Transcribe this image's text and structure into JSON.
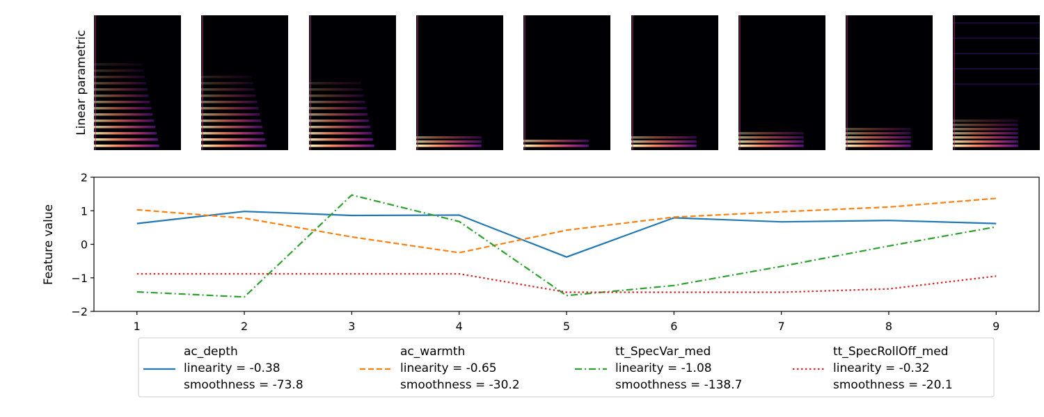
{
  "spectrogram_strip": {
    "ylabel": "Linear parametric",
    "panel_count": 9
  },
  "chart_data": {
    "type": "line",
    "title": "",
    "xlabel": "",
    "ylabel": "Feature value",
    "x": [
      1,
      2,
      3,
      4,
      5,
      6,
      7,
      8,
      9
    ],
    "xticks": [
      "1",
      "2",
      "3",
      "4",
      "5",
      "6",
      "7",
      "8",
      "9"
    ],
    "yticks": [
      "2",
      "1",
      "0",
      "−1",
      "−2"
    ],
    "ytick_values": [
      2,
      1,
      0,
      -1,
      -2
    ],
    "xlim": [
      0.6,
      9.4
    ],
    "ylim": [
      -2,
      2
    ],
    "grid": false,
    "legend_placement": "bottom-center",
    "series": [
      {
        "name": "ac_depth",
        "linearity": "linearity = -0.38",
        "smoothness": "smoothness = -73.8",
        "color": "#1f77b4",
        "style": "solid",
        "values": [
          0.62,
          0.98,
          0.86,
          0.87,
          -0.38,
          0.79,
          0.67,
          0.71,
          0.62
        ]
      },
      {
        "name": "ac_warmth",
        "linearity": "linearity = -0.65",
        "smoothness": "smoothness = -30.2",
        "color": "#ff7f0e",
        "style": "dashed",
        "values": [
          1.03,
          0.78,
          0.22,
          -0.25,
          0.42,
          0.81,
          0.97,
          1.11,
          1.37
        ]
      },
      {
        "name": "tt_SpecVar_med",
        "linearity": "linearity = -1.08",
        "smoothness": "smoothness = -138.7",
        "color": "#2ca02c",
        "style": "dashdot",
        "values": [
          -1.42,
          -1.57,
          1.47,
          0.68,
          -1.53,
          -1.23,
          -0.66,
          -0.05,
          0.52
        ]
      },
      {
        "name": "tt_SpecRollOff_med",
        "linearity": "linearity = -0.32",
        "smoothness": "smoothness = -20.1",
        "color": "#d62728",
        "style": "dotted",
        "values": [
          -0.88,
          -0.88,
          -0.88,
          -0.88,
          -1.43,
          -1.43,
          -1.43,
          -1.33,
          -0.95
        ]
      }
    ]
  }
}
